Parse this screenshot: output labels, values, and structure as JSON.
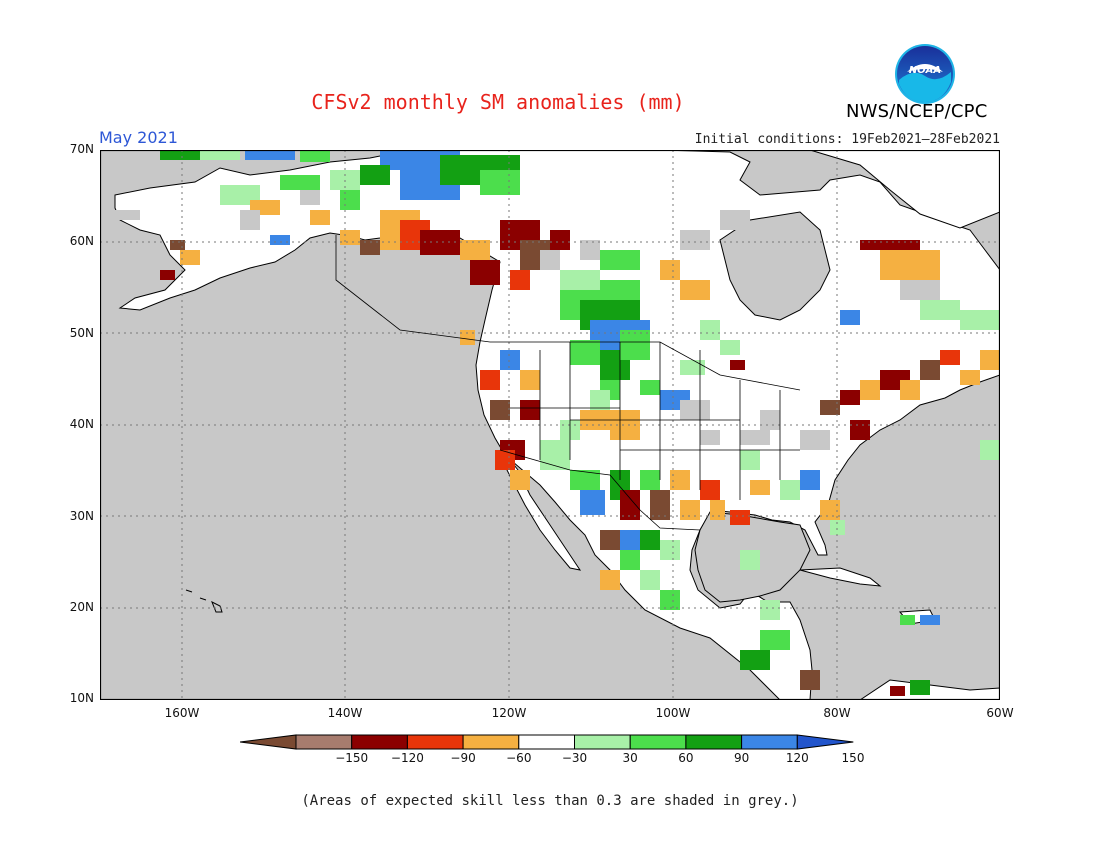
{
  "header": {
    "title": "CFSv2 monthly SM anomalies (mm)",
    "valid_month": "May 2021",
    "initial_conditions": "Initial conditions: 19Feb2021–28Feb2021",
    "org_label": "NWS/NCEP/CPC",
    "logo_text": "NOAA"
  },
  "map": {
    "lat_labels": [
      "70N",
      "60N",
      "50N",
      "40N",
      "30N",
      "20N",
      "10N"
    ],
    "lon_labels": [
      "160W",
      "140W",
      "120W",
      "100W",
      "80W",
      "60W"
    ],
    "ocean_color": "#c8c8c8",
    "land_color": "#ffffff"
  },
  "colorbar": {
    "labels": [
      "−150",
      "−120",
      "−90",
      "−60",
      "−30",
      "30",
      "60",
      "90",
      "120",
      "150"
    ],
    "colors": [
      "#7a4a32",
      "#a77c6e",
      "#8b0000",
      "#e8350a",
      "#f5b041",
      "#ffffff",
      "#a8f0a8",
      "#4cde4c",
      "#13a013",
      "#3b86e6",
      "#2255cc"
    ]
  },
  "footnote": "(Areas of expected skill less than 0.3 are shaded in grey.)"
}
